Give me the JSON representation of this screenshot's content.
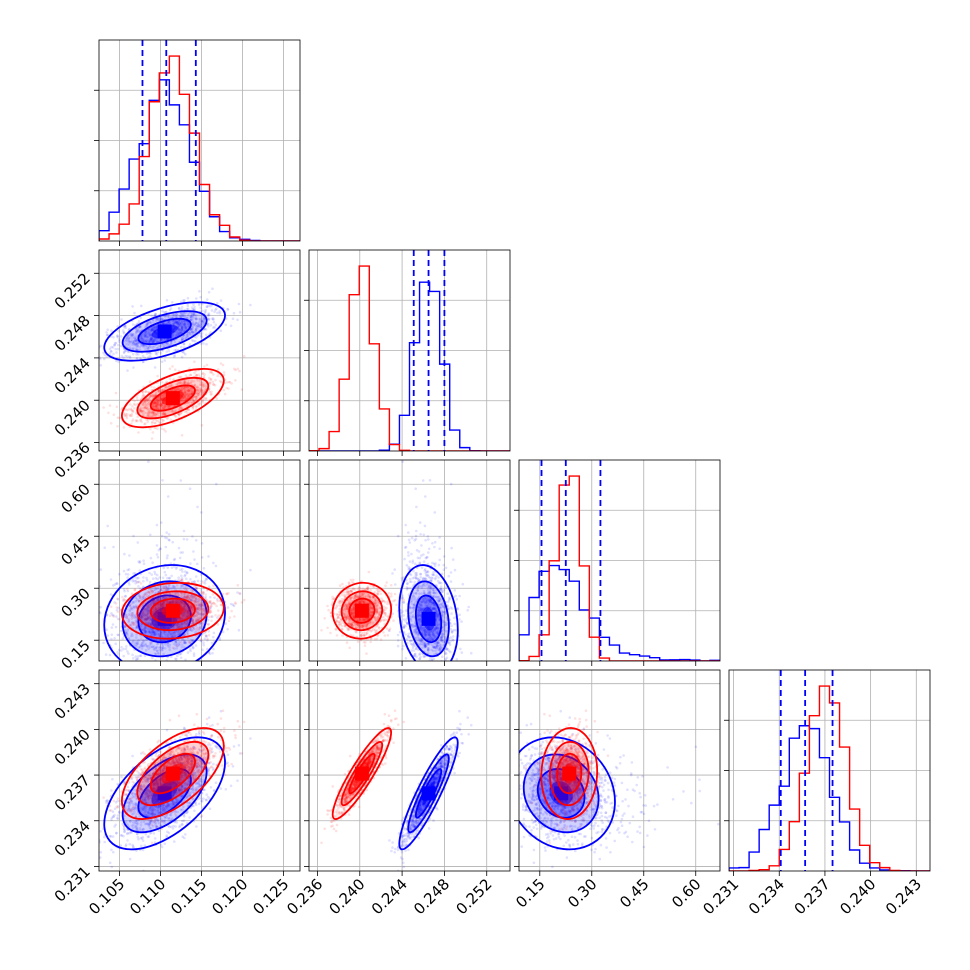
{
  "chart_data": {
    "type": "corner",
    "grid": true,
    "colors": {
      "set_a": "#0000ff",
      "set_b": "#ff0000",
      "quantile_line": "#0000ff"
    },
    "parameters": [
      {
        "range": [
          0.1025,
          0.127
        ],
        "ticks": [
          0.105,
          0.11,
          0.115,
          0.12,
          0.125
        ],
        "tick_labels": [
          "0.105",
          "0.110",
          "0.115",
          "0.120",
          "0.125"
        ]
      },
      {
        "range": [
          0.2352,
          0.2542
        ],
        "ticks": [
          0.236,
          0.24,
          0.244,
          0.248,
          0.252
        ],
        "tick_labels": [
          "0.236",
          "0.240",
          "0.244",
          "0.248",
          "0.252"
        ]
      },
      {
        "range": [
          0.09,
          0.67
        ],
        "ticks": [
          0.15,
          0.3,
          0.45,
          0.6
        ],
        "tick_labels": [
          "0.15",
          "0.30",
          "0.45",
          "0.60"
        ]
      },
      {
        "range": [
          0.2307,
          0.2439
        ],
        "ticks": [
          0.231,
          0.234,
          0.237,
          0.24,
          0.243
        ],
        "tick_labels": [
          "0.231",
          "0.234",
          "0.237",
          "0.240",
          "0.243"
        ]
      }
    ],
    "series": [
      {
        "color": "#0000ff",
        "means": [
          0.1105,
          0.2465,
          0.225,
          0.2358
        ],
        "sds": [
          0.0032,
          0.0012,
          0.07,
          0.0016
        ],
        "correlation": [
          [
            1,
            0.55,
            0.12,
            0.55
          ],
          [
            0.55,
            1,
            -0.2,
            0.9
          ],
          [
            0.12,
            -0.2,
            1,
            -0.15
          ],
          [
            0.55,
            0.9,
            -0.15,
            1
          ]
        ],
        "skewed": [
          false,
          false,
          true,
          false
        ],
        "quantiles": [
          [
            0.1078,
            0.1107,
            0.1143
          ],
          [
            0.2451,
            0.2465,
            0.248
          ],
          [
            0.155,
            0.225,
            0.325
          ],
          [
            0.2341,
            0.2357,
            0.2375
          ]
        ]
      },
      {
        "color": "#ff0000",
        "means": [
          0.1115,
          0.2402,
          0.235,
          0.2371
        ],
        "sds": [
          0.0027,
          0.0012,
          0.035,
          0.0013
        ],
        "correlation": [
          [
            1,
            0.6,
            0.1,
            0.6
          ],
          [
            0.6,
            1,
            0.05,
            0.9
          ],
          [
            0.1,
            0.05,
            1,
            0.05
          ],
          [
            0.6,
            0.9,
            0.05,
            1
          ]
        ],
        "skewed": [
          false,
          false,
          false,
          false
        ],
        "quantiles": null
      }
    ]
  }
}
